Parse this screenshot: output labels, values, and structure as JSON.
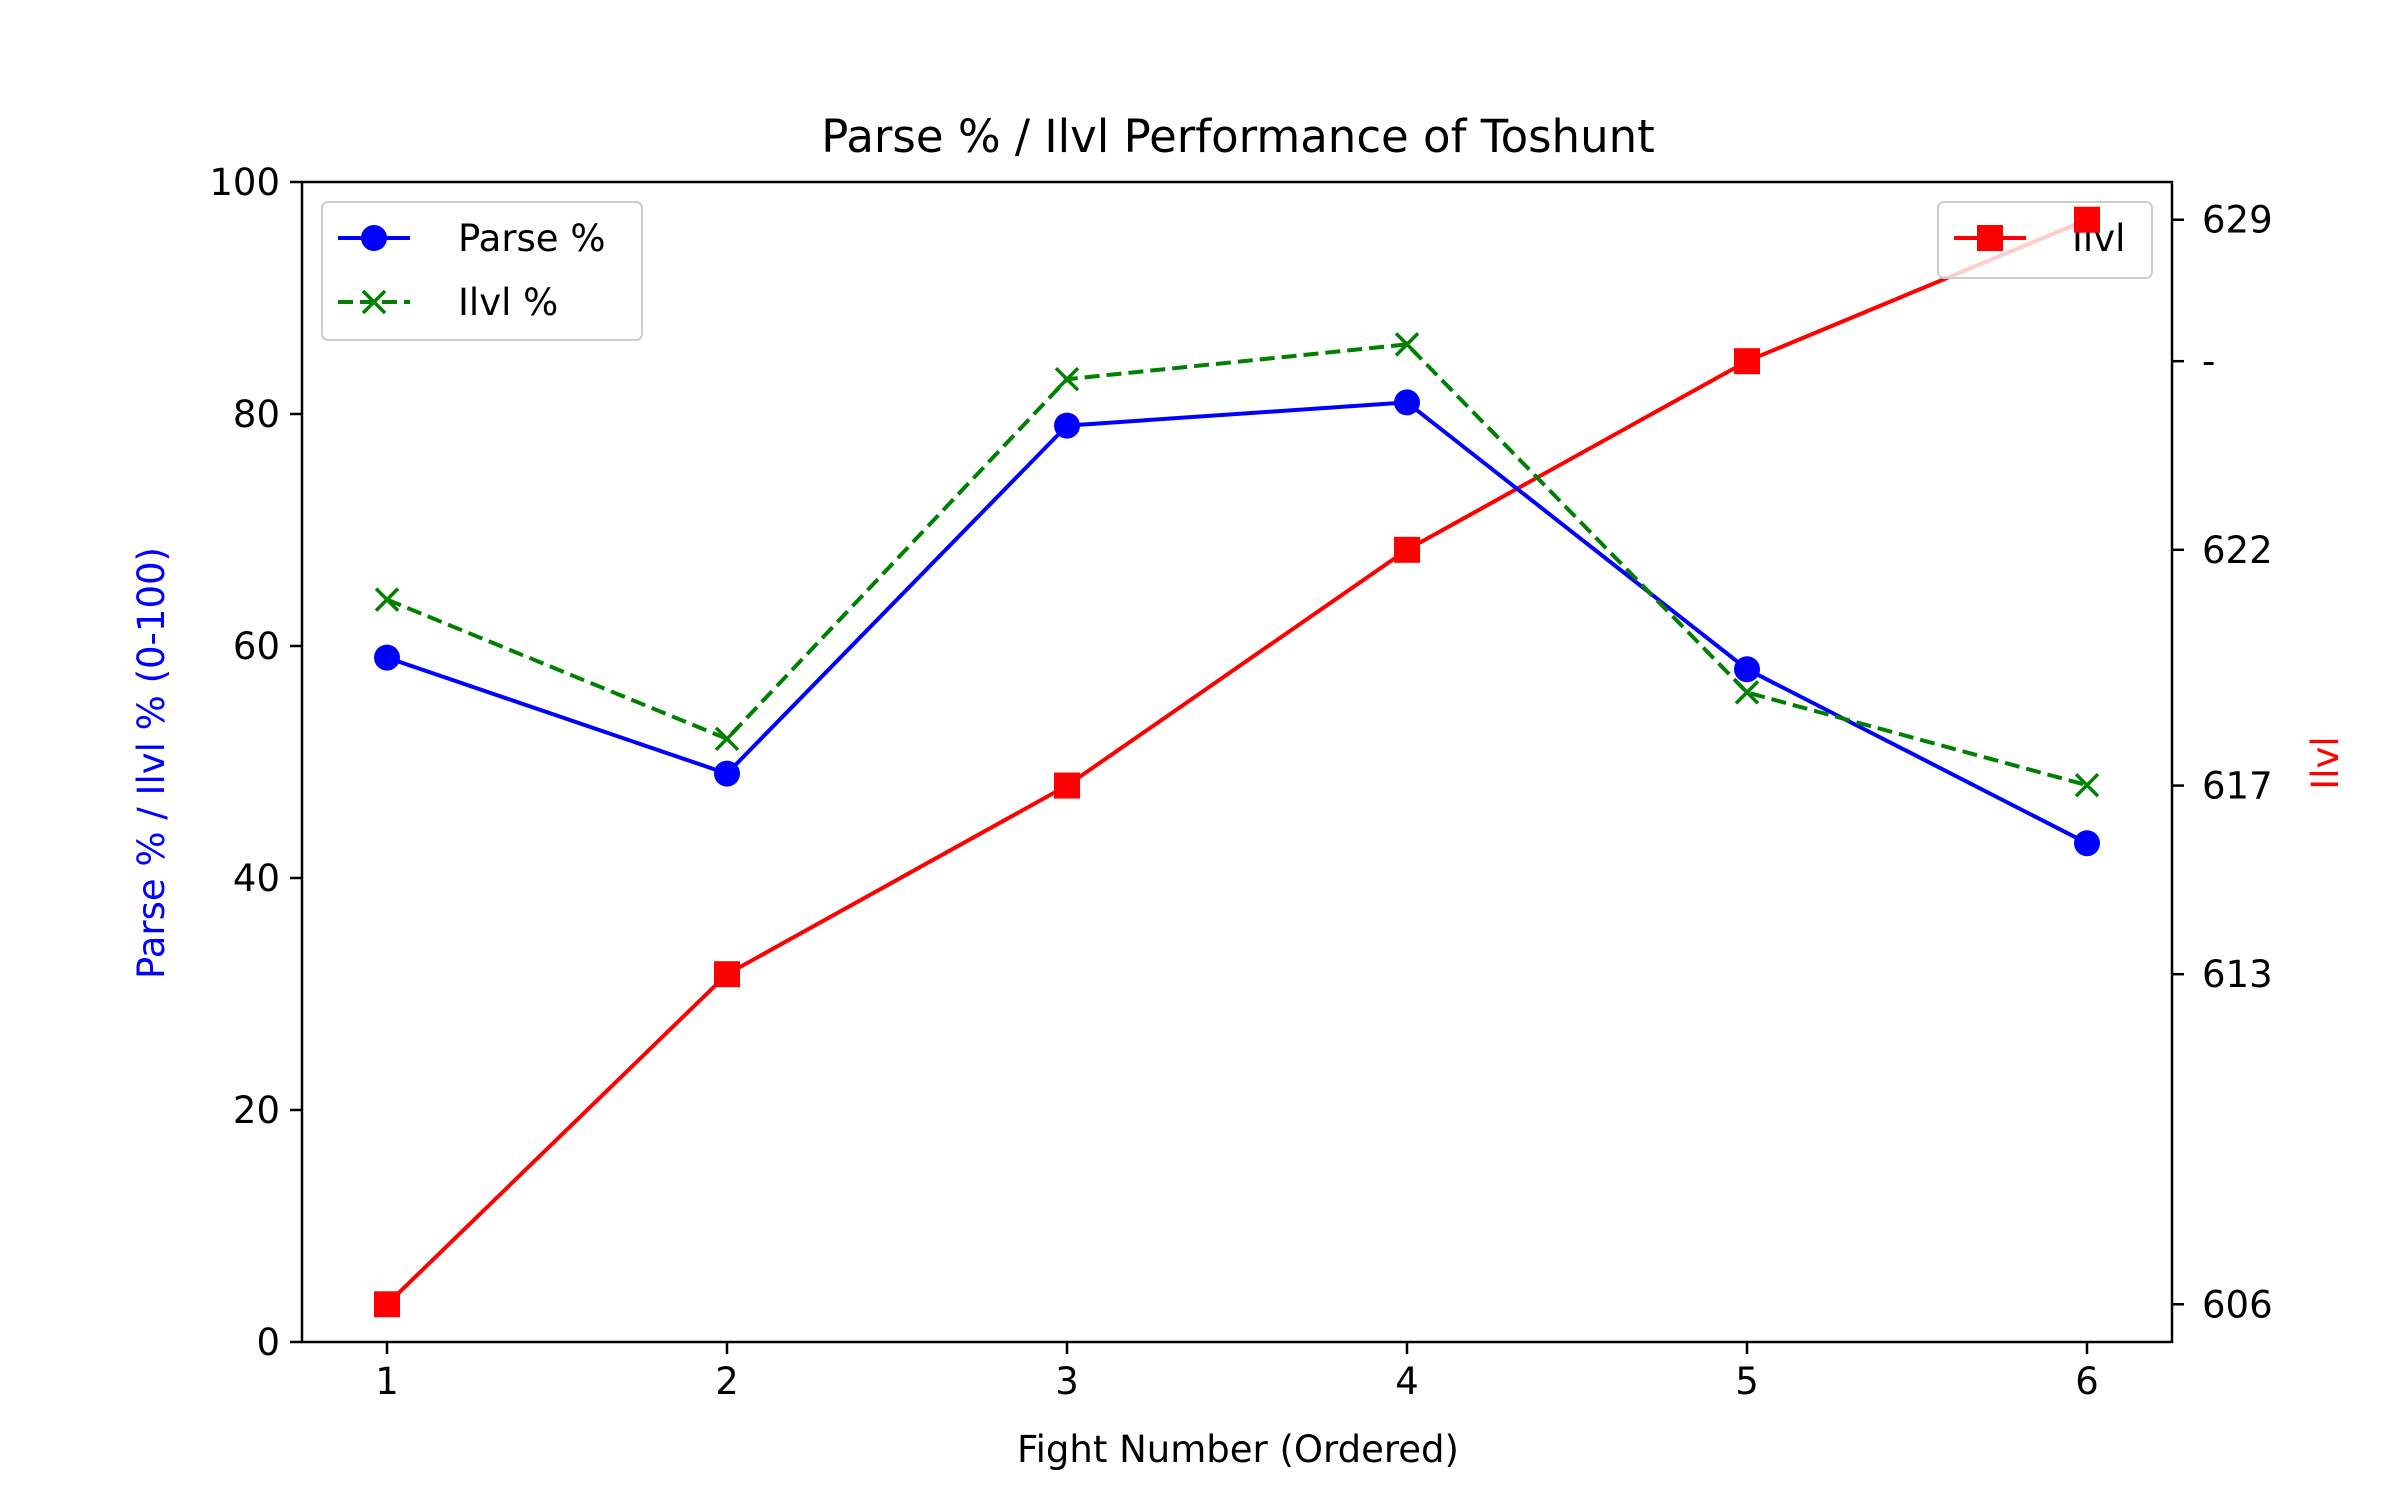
{
  "chart_data": {
    "type": "line",
    "title": "Parse % / Ilvl Performance of Toshunt",
    "xlabel": "Fight Number (Ordered)",
    "ylabel_left": "Parse % / Ilvl % (0-100)",
    "ylabel_right": "Ilvl",
    "x": [
      1,
      2,
      3,
      4,
      5,
      6
    ],
    "xlim": [
      0.75,
      6.25
    ],
    "ylim_left": [
      0,
      100
    ],
    "ylim_right": [
      605.2,
      629.8
    ],
    "left_ticks": [
      "0",
      "20",
      "40",
      "60",
      "80",
      "100"
    ],
    "right_ticks": [
      "606",
      "613",
      "617",
      "622",
      "-",
      "629"
    ],
    "right_tick_values": [
      606,
      613,
      617,
      622,
      626,
      629
    ],
    "grid": false,
    "series": [
      {
        "name": "Parse %",
        "axis": "left",
        "values": [
          59,
          49,
          79,
          81,
          58,
          43
        ],
        "color": "#0000ff",
        "marker": "circle",
        "dash": "solid"
      },
      {
        "name": "Ilvl %",
        "axis": "left",
        "values": [
          64,
          52,
          83,
          86,
          56,
          48
        ],
        "color": "#008000",
        "marker": "x",
        "dash": "dashed"
      },
      {
        "name": "Ilvl",
        "axis": "right",
        "values": [
          606,
          613,
          617,
          622,
          626,
          629
        ],
        "color": "#ff0000",
        "marker": "square",
        "dash": "solid"
      }
    ],
    "legend_left": {
      "position": "upper-left",
      "entries": [
        "Parse %",
        "Ilvl %"
      ]
    },
    "legend_right": {
      "position": "upper-right",
      "entries": [
        "Ilvl"
      ]
    }
  }
}
